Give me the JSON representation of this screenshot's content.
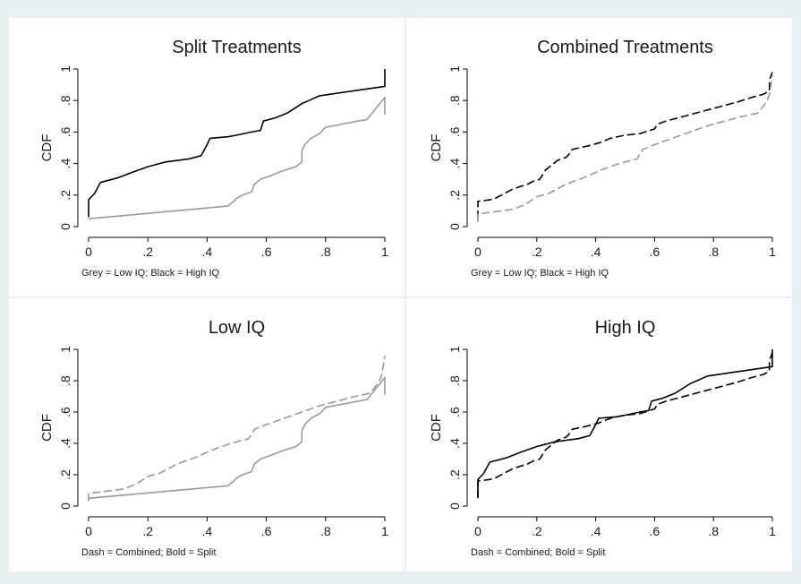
{
  "chart_data": [
    {
      "type": "line",
      "title": "Split Treatments",
      "ylabel": "CDF",
      "note": "Grey = Low IQ; Black = High IQ",
      "xlim": [
        0,
        1
      ],
      "ylim": [
        0,
        1
      ],
      "xticks": [
        "0",
        ".2",
        ".4",
        ".6",
        ".8",
        "1"
      ],
      "yticks": [
        "0",
        ".2",
        ".4",
        ".6",
        ".8",
        "1"
      ],
      "series": [
        {
          "color": "#000000",
          "dash": "solid",
          "x": [
            0,
            0,
            0.02,
            0.04,
            0.1,
            0.14,
            0.2,
            0.22,
            0.26,
            0.3,
            0.34,
            0.38,
            0.4,
            0.41,
            0.47,
            0.5,
            0.55,
            0.58,
            0.59,
            0.63,
            0.67,
            0.72,
            0.78,
            1.0,
            1.0
          ],
          "y": [
            0.06,
            0.17,
            0.21,
            0.28,
            0.31,
            0.34,
            0.38,
            0.39,
            0.41,
            0.42,
            0.43,
            0.45,
            0.52,
            0.56,
            0.57,
            0.58,
            0.6,
            0.61,
            0.67,
            0.69,
            0.72,
            0.78,
            0.83,
            0.89,
            1.0
          ]
        },
        {
          "color": "#9a9a9a",
          "dash": "solid",
          "x": [
            0,
            0.47,
            0.49,
            0.5,
            0.52,
            0.55,
            0.56,
            0.58,
            0.61,
            0.65,
            0.7,
            0.72,
            0.72,
            0.73,
            0.75,
            0.78,
            0.8,
            0.94,
            1.0,
            1.0
          ],
          "y": [
            0.05,
            0.13,
            0.16,
            0.18,
            0.2,
            0.22,
            0.27,
            0.3,
            0.32,
            0.35,
            0.38,
            0.41,
            0.48,
            0.52,
            0.56,
            0.59,
            0.63,
            0.68,
            0.82,
            0.71
          ]
        }
      ]
    },
    {
      "type": "line",
      "title": "Combined Treatments",
      "ylabel": "CDF",
      "note": "Grey = Low IQ; Black = High IQ",
      "xlim": [
        0,
        1
      ],
      "ylim": [
        0,
        1
      ],
      "xticks": [
        "0",
        ".2",
        ".4",
        ".6",
        ".8",
        "1"
      ],
      "yticks": [
        "0",
        ".2",
        ".4",
        ".6",
        ".8",
        "1"
      ],
      "series": [
        {
          "color": "#000000",
          "dash": "dashed",
          "x": [
            0,
            0,
            0.04,
            0.06,
            0.07,
            0.12,
            0.17,
            0.19,
            0.21,
            0.23,
            0.25,
            0.27,
            0.3,
            0.31,
            0.32,
            0.37,
            0.41,
            0.45,
            0.5,
            0.55,
            0.6,
            0.61,
            0.64,
            0.68,
            0.72,
            0.76,
            0.8,
            0.84,
            0.88,
            0.93,
            0.97,
            0.99,
            0.99,
            1.0
          ],
          "y": [
            0.05,
            0.16,
            0.17,
            0.18,
            0.19,
            0.24,
            0.27,
            0.29,
            0.3,
            0.36,
            0.39,
            0.42,
            0.44,
            0.46,
            0.49,
            0.51,
            0.53,
            0.56,
            0.58,
            0.59,
            0.62,
            0.65,
            0.67,
            0.69,
            0.71,
            0.73,
            0.75,
            0.77,
            0.79,
            0.82,
            0.84,
            0.86,
            0.93,
            0.98
          ]
        },
        {
          "color": "#9a9a9a",
          "dash": "dashed",
          "x": [
            0,
            0,
            0.04,
            0.08,
            0.12,
            0.16,
            0.2,
            0.24,
            0.28,
            0.3,
            0.36,
            0.42,
            0.48,
            0.54,
            0.56,
            0.6,
            0.66,
            0.72,
            0.78,
            0.84,
            0.9,
            0.95,
            0.98,
            0.99,
            1.0
          ],
          "y": [
            0.03,
            0.08,
            0.09,
            0.1,
            0.11,
            0.14,
            0.19,
            0.21,
            0.25,
            0.27,
            0.31,
            0.36,
            0.4,
            0.43,
            0.49,
            0.52,
            0.56,
            0.6,
            0.64,
            0.67,
            0.7,
            0.72,
            0.79,
            0.84,
            0.96
          ]
        }
      ]
    },
    {
      "type": "line",
      "title": "Low IQ",
      "ylabel": "CDF",
      "note": "Dash = Combined; Bold = Split",
      "xlim": [
        0,
        1
      ],
      "ylim": [
        0,
        1
      ],
      "xticks": [
        "0",
        ".2",
        ".4",
        ".6",
        ".8",
        "1"
      ],
      "yticks": [
        "0",
        ".2",
        ".4",
        ".6",
        ".8",
        "1"
      ],
      "series": [
        {
          "color": "#9a9a9a",
          "dash": "solid",
          "x": [
            0,
            0.47,
            0.49,
            0.5,
            0.52,
            0.55,
            0.56,
            0.58,
            0.61,
            0.65,
            0.7,
            0.72,
            0.72,
            0.73,
            0.75,
            0.78,
            0.8,
            0.94,
            1.0,
            1.0
          ],
          "y": [
            0.05,
            0.13,
            0.16,
            0.18,
            0.2,
            0.22,
            0.27,
            0.3,
            0.32,
            0.35,
            0.38,
            0.41,
            0.48,
            0.52,
            0.56,
            0.59,
            0.63,
            0.68,
            0.82,
            0.71
          ]
        },
        {
          "color": "#9a9a9a",
          "dash": "dashed",
          "x": [
            0,
            0,
            0.04,
            0.08,
            0.12,
            0.16,
            0.2,
            0.24,
            0.28,
            0.3,
            0.36,
            0.42,
            0.48,
            0.54,
            0.56,
            0.6,
            0.66,
            0.72,
            0.78,
            0.84,
            0.9,
            0.95,
            0.98,
            0.99,
            1.0
          ],
          "y": [
            0.03,
            0.08,
            0.09,
            0.1,
            0.11,
            0.14,
            0.19,
            0.21,
            0.25,
            0.27,
            0.31,
            0.36,
            0.4,
            0.43,
            0.49,
            0.52,
            0.56,
            0.6,
            0.64,
            0.67,
            0.7,
            0.72,
            0.79,
            0.84,
            0.96
          ]
        }
      ]
    },
    {
      "type": "line",
      "title": "High IQ",
      "ylabel": "CDF",
      "note": "Dash = Combined; Bold = Split",
      "xlim": [
        0,
        1
      ],
      "ylim": [
        0,
        1
      ],
      "xticks": [
        "0",
        ".2",
        ".4",
        ".6",
        ".8",
        "1"
      ],
      "yticks": [
        "0",
        ".2",
        ".4",
        ".6",
        ".8",
        "1"
      ],
      "series": [
        {
          "color": "#000000",
          "dash": "solid",
          "x": [
            0,
            0,
            0.02,
            0.04,
            0.1,
            0.14,
            0.2,
            0.22,
            0.26,
            0.3,
            0.34,
            0.38,
            0.4,
            0.41,
            0.47,
            0.5,
            0.55,
            0.58,
            0.59,
            0.63,
            0.67,
            0.72,
            0.78,
            1.0,
            1.0
          ],
          "y": [
            0.06,
            0.17,
            0.21,
            0.28,
            0.31,
            0.34,
            0.38,
            0.39,
            0.41,
            0.42,
            0.43,
            0.45,
            0.52,
            0.56,
            0.57,
            0.58,
            0.6,
            0.61,
            0.67,
            0.69,
            0.72,
            0.78,
            0.83,
            0.89,
            1.0
          ]
        },
        {
          "color": "#000000",
          "dash": "dashed",
          "x": [
            0,
            0,
            0.04,
            0.06,
            0.07,
            0.12,
            0.17,
            0.19,
            0.21,
            0.23,
            0.25,
            0.27,
            0.3,
            0.31,
            0.32,
            0.37,
            0.41,
            0.45,
            0.5,
            0.55,
            0.6,
            0.61,
            0.64,
            0.68,
            0.72,
            0.76,
            0.8,
            0.84,
            0.88,
            0.93,
            0.97,
            0.99,
            0.99,
            1.0
          ],
          "y": [
            0.05,
            0.16,
            0.17,
            0.18,
            0.19,
            0.24,
            0.27,
            0.29,
            0.3,
            0.36,
            0.39,
            0.42,
            0.44,
            0.46,
            0.49,
            0.51,
            0.53,
            0.56,
            0.58,
            0.59,
            0.62,
            0.65,
            0.67,
            0.69,
            0.71,
            0.73,
            0.75,
            0.77,
            0.79,
            0.82,
            0.84,
            0.86,
            0.93,
            0.98
          ]
        }
      ]
    }
  ]
}
